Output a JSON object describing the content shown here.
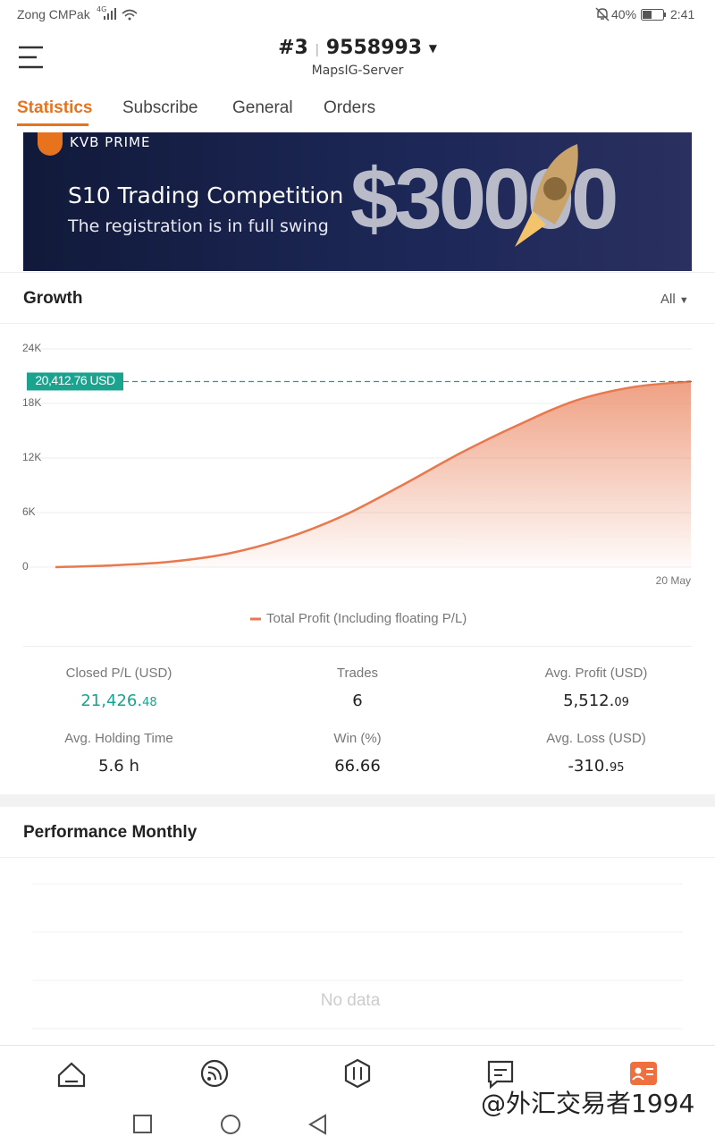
{
  "status_bar": {
    "carrier": "Zong CMPak",
    "network": "4G",
    "battery": "40%",
    "time": "2:41"
  },
  "header": {
    "account": "#3",
    "account_id": "9558993",
    "server": "MapsIG-Server"
  },
  "tabs": [
    "Statistics",
    "Subscribe",
    "General",
    "Orders"
  ],
  "banner": {
    "brand": "KVB PRIME",
    "title": "S10 Trading Competition",
    "subtitle": "The registration is in full swing",
    "prize": "$30000"
  },
  "growth": {
    "title": "Growth",
    "range": "All"
  },
  "chart_data": {
    "type": "area",
    "categories": [
      null,
      null,
      null,
      null,
      null,
      null,
      null,
      null,
      null,
      null,
      null,
      "20 May"
    ],
    "series": [
      {
        "name": "Total Profit (Including floating P/L)",
        "color": "#e8784e",
        "values": [
          0,
          200,
          600,
          1500,
          3200,
          5700,
          9000,
          12500,
          15600,
          18300,
          19800,
          20412.76
        ]
      }
    ],
    "annotation": {
      "value": 20412.76,
      "label": "20,412.76 USD",
      "color": "#1aa38e"
    },
    "ylim": [
      0,
      24000
    ],
    "yticks": [
      0,
      {
        "value": 6000,
        "label": "6K"
      },
      {
        "value": 12000,
        "label": "12K"
      },
      {
        "value": 18000,
        "label": "18K"
      },
      {
        "value": 24000,
        "label": "24K"
      }
    ],
    "grid": true,
    "legend": "bottom"
  },
  "stats": [
    {
      "label": "Closed P/L (USD)",
      "value": "21,426.48"
    },
    {
      "label": "Trades",
      "value": "6"
    },
    {
      "label": "Avg. Profit (USD)",
      "value": "5,512.09"
    },
    {
      "label": "Avg. Holding Time",
      "value": "5.6 h"
    },
    {
      "label": "Win (%)",
      "value": "66.66"
    },
    {
      "label": "Avg. Loss (USD)",
      "value": "-310.95"
    }
  ],
  "performance": {
    "title": "Performance Monthly",
    "empty": "No data"
  },
  "watermark": "@外汇交易者1994"
}
